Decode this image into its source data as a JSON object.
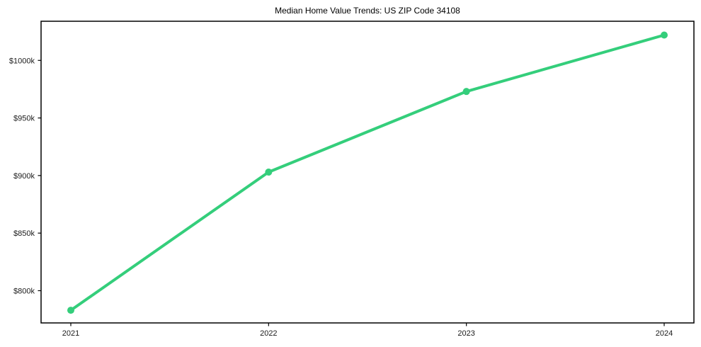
{
  "chart_data": {
    "type": "line",
    "title": "Median Home Value Trends: US ZIP Code 34108",
    "xlabel": "",
    "ylabel": "",
    "categories": [
      "2021",
      "2022",
      "2023",
      "2024"
    ],
    "values": [
      783,
      903,
      973,
      1022
    ],
    "values_unit": "$k",
    "yticks": [
      {
        "value": 800,
        "label": "$800k"
      },
      {
        "value": 850,
        "label": "$850k"
      },
      {
        "value": 900,
        "label": "$900k"
      },
      {
        "value": 950,
        "label": "$950k"
      },
      {
        "value": 1000,
        "label": "$1000k"
      }
    ],
    "ylim": [
      772,
      1034
    ],
    "grid": false,
    "legend": false,
    "marker": "circle",
    "colors": {
      "line": "#34ce7b",
      "marker": "#34ce7b",
      "axis": "#000000",
      "tick_text": "#1a1a1a",
      "background": "#ffffff"
    }
  }
}
